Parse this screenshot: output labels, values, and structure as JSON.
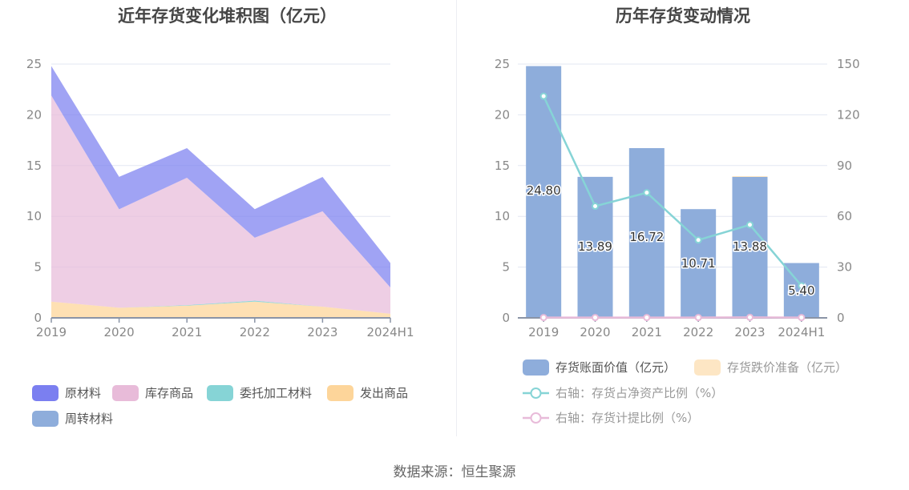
{
  "left_chart": {
    "title": "近年存货变化堆积图（亿元）"
  },
  "right_chart": {
    "title": "历年存货变动情况"
  },
  "source": "数据来源：恒生聚源",
  "colors": {
    "raw_material": "#7b7ff0",
    "inventory_goods": "#e8bbd9",
    "consigned_processing": "#86d4d6",
    "goods_shipped": "#fdd59a",
    "turnover_material": "#8eaddb",
    "book_value_bar": "#8eaddb",
    "impairment_bar": "#fde6c4",
    "net_asset_ratio_line": "#86d4d6",
    "provision_ratio_line": "#e8bbd9",
    "grid": "#e3e7f2",
    "axis_text": "#888888"
  },
  "chart_data": [
    {
      "type": "area",
      "stacked": true,
      "title": "近年存货变化堆积图（亿元）",
      "xlabel": "",
      "ylabel": "",
      "categories": [
        "2019",
        "2020",
        "2021",
        "2022",
        "2023",
        "2024H1"
      ],
      "yticks": [
        "0",
        "5",
        "10",
        "15",
        "20",
        "25"
      ],
      "ylim": [
        0,
        25
      ],
      "grid": true,
      "legend_position": "bottom",
      "series": [
        {
          "name": "发出商品",
          "values": [
            1.6,
            1.0,
            1.2,
            1.6,
            1.1,
            0.4
          ]
        },
        {
          "name": "委托加工材料",
          "values": [
            0.0,
            0.0,
            0.05,
            0.1,
            0.0,
            0.0
          ]
        },
        {
          "name": "周转材料",
          "values": [
            0.0,
            0.0,
            0.0,
            0.0,
            0.0,
            0.0
          ]
        },
        {
          "name": "库存商品",
          "values": [
            20.3,
            9.7,
            12.55,
            6.2,
            9.4,
            2.6
          ]
        },
        {
          "name": "原材料",
          "values": [
            2.9,
            3.19,
            2.92,
            2.81,
            3.38,
            2.4
          ]
        }
      ],
      "legend": [
        "原材料",
        "库存商品",
        "委托加工材料",
        "发出商品",
        "周转材料"
      ]
    },
    {
      "type": "bar",
      "title": "历年存货变动情况",
      "categories": [
        "2019",
        "2020",
        "2021",
        "2022",
        "2023",
        "2024H1"
      ],
      "yticks_left": [
        "0",
        "5",
        "10",
        "15",
        "20",
        "25"
      ],
      "yticks_right": [
        "0",
        "30",
        "60",
        "90",
        "120",
        "150"
      ],
      "ylim_left": [
        0,
        25
      ],
      "ylim_right": [
        0,
        150
      ],
      "grid": true,
      "legend_position": "bottom",
      "series": [
        {
          "name": "存货账面价值（亿元）",
          "type": "bar",
          "axis": "left",
          "values": [
            24.8,
            13.89,
            16.72,
            10.71,
            13.88,
            5.4
          ],
          "labels": [
            "24.80",
            "13.89",
            "16.72",
            "10.71",
            "13.88",
            "5.40"
          ]
        },
        {
          "name": "存货跌价准备（亿元）",
          "type": "bar",
          "stacked": true,
          "axis": "left",
          "values": [
            0.0,
            0.0,
            0.0,
            0.0,
            0.05,
            0.0
          ]
        },
        {
          "name": "右轴：存货占净资产比例（%）",
          "type": "line",
          "axis": "right",
          "values": [
            131,
            66,
            74,
            46,
            55,
            19
          ]
        },
        {
          "name": "右轴：存货计提比例（%）",
          "type": "line",
          "axis": "right",
          "values": [
            0.2,
            0.2,
            0.2,
            0.2,
            0.3,
            0.2
          ]
        }
      ]
    }
  ],
  "left_legend": [
    {
      "label": "原材料",
      "color": "#7b7ff0"
    },
    {
      "label": "库存商品",
      "color": "#e8bbd9"
    },
    {
      "label": "委托加工材料",
      "color": "#86d4d6"
    },
    {
      "label": "发出商品",
      "color": "#fdd59a"
    },
    {
      "label": "周转材料",
      "color": "#8eaddb"
    }
  ],
  "right_legend": [
    {
      "label": "存货账面价值（亿元）",
      "color": "#8eaddb",
      "kind": "box"
    },
    {
      "label": "存货跌价准备（亿元）",
      "color": "#fde6c4",
      "kind": "box"
    },
    {
      "label": "右轴：存货占净资产比例（%）",
      "color": "#86d4d6",
      "kind": "line"
    },
    {
      "label": "右轴：存货计提比例（%）",
      "color": "#e8bbd9",
      "kind": "line"
    }
  ]
}
